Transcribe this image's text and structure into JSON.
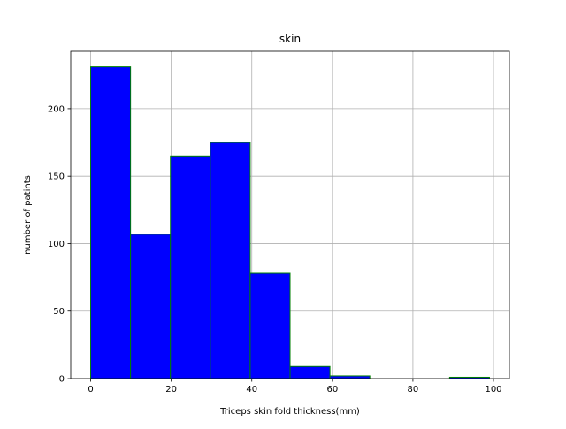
{
  "chart_data": {
    "type": "bar",
    "title": "skin",
    "xlabel": "Triceps skin fold thickness(mm)",
    "ylabel": "number of patints",
    "bins": [
      {
        "x0": 0,
        "x1": 9.9,
        "count": 231
      },
      {
        "x0": 9.9,
        "x1": 19.8,
        "count": 107
      },
      {
        "x0": 19.8,
        "x1": 29.7,
        "count": 165
      },
      {
        "x0": 29.7,
        "x1": 39.6,
        "count": 175
      },
      {
        "x0": 39.6,
        "x1": 49.5,
        "count": 78
      },
      {
        "x0": 49.5,
        "x1": 59.4,
        "count": 9
      },
      {
        "x0": 59.4,
        "x1": 69.3,
        "count": 2
      },
      {
        "x0": 69.3,
        "x1": 79.2,
        "count": 0
      },
      {
        "x0": 79.2,
        "x1": 89.1,
        "count": 0
      },
      {
        "x0": 89.1,
        "x1": 99.0,
        "count": 1
      }
    ],
    "xlim": [
      -4.95,
      103.95
    ],
    "ylim": [
      0,
      242.55
    ],
    "xticks": [
      0,
      20,
      40,
      60,
      80,
      100
    ],
    "yticks": [
      0,
      50,
      100,
      150,
      200
    ],
    "grid": true,
    "colors": {
      "bar_fill": "#0000ff",
      "bar_edge": "#008000",
      "grid": "#b0b0b0",
      "axes": "#000000"
    }
  }
}
